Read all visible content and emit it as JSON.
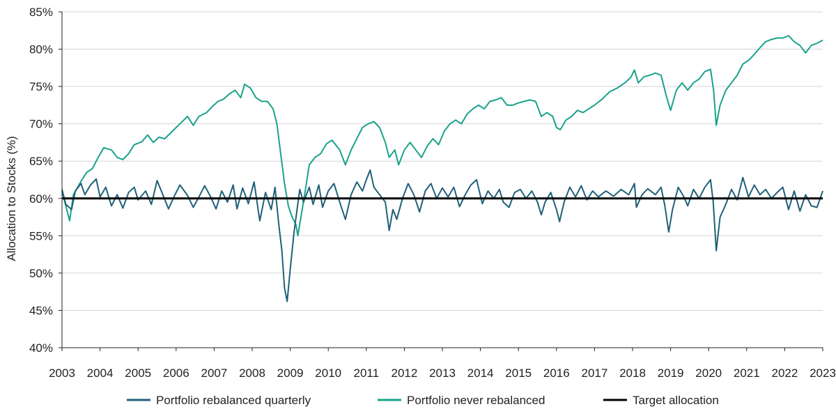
{
  "chart_data": {
    "type": "line",
    "title": "",
    "xlabel": "",
    "ylabel": "Allocation to Stocks (%)",
    "xlim": [
      2003,
      2023
    ],
    "ylim": [
      40,
      85
    ],
    "x_ticks": [
      "2003",
      "2004",
      "2005",
      "2006",
      "2007",
      "2008",
      "2009",
      "2010",
      "2011",
      "2012",
      "2013",
      "2014",
      "2015",
      "2016",
      "2017",
      "2018",
      "2019",
      "2020",
      "2021",
      "2022",
      "2023"
    ],
    "y_ticks": [
      "40%",
      "45%",
      "50%",
      "55%",
      "60%",
      "65%",
      "70%",
      "75%",
      "80%",
      "85%"
    ],
    "grid": "horizontal",
    "legend_position": "bottom",
    "series": [
      {
        "name": "Portfolio rebalanced quarterly",
        "color": "#1f6079",
        "points": [
          [
            2003.0,
            61.2
          ],
          [
            2003.1,
            59.2
          ],
          [
            2003.25,
            58.5
          ],
          [
            2003.35,
            61.0
          ],
          [
            2003.5,
            62.0
          ],
          [
            2003.6,
            60.5
          ],
          [
            2003.75,
            61.8
          ],
          [
            2003.9,
            62.6
          ],
          [
            2004.0,
            60.2
          ],
          [
            2004.15,
            61.5
          ],
          [
            2004.3,
            59.0
          ],
          [
            2004.45,
            60.5
          ],
          [
            2004.6,
            58.7
          ],
          [
            2004.75,
            60.8
          ],
          [
            2004.9,
            61.5
          ],
          [
            2005.0,
            59.8
          ],
          [
            2005.2,
            61.0
          ],
          [
            2005.35,
            59.2
          ],
          [
            2005.5,
            62.4
          ],
          [
            2005.65,
            60.5
          ],
          [
            2005.8,
            58.6
          ],
          [
            2005.95,
            60.3
          ],
          [
            2006.1,
            61.8
          ],
          [
            2006.3,
            60.4
          ],
          [
            2006.45,
            58.8
          ],
          [
            2006.6,
            60.2
          ],
          [
            2006.75,
            61.7
          ],
          [
            2006.9,
            60.3
          ],
          [
            2007.05,
            58.6
          ],
          [
            2007.2,
            61.0
          ],
          [
            2007.35,
            59.5
          ],
          [
            2007.5,
            61.8
          ],
          [
            2007.6,
            58.6
          ],
          [
            2007.75,
            61.4
          ],
          [
            2007.9,
            59.3
          ],
          [
            2008.05,
            62.2
          ],
          [
            2008.2,
            57.0
          ],
          [
            2008.35,
            60.8
          ],
          [
            2008.5,
            58.5
          ],
          [
            2008.6,
            61.5
          ],
          [
            2008.7,
            56.5
          ],
          [
            2008.78,
            53.0
          ],
          [
            2008.85,
            48.0
          ],
          [
            2008.92,
            46.2
          ],
          [
            2009.0,
            50.5
          ],
          [
            2009.1,
            55.5
          ],
          [
            2009.18,
            58.5
          ],
          [
            2009.25,
            61.2
          ],
          [
            2009.35,
            59.5
          ],
          [
            2009.5,
            61.5
          ],
          [
            2009.6,
            59.2
          ],
          [
            2009.75,
            61.8
          ],
          [
            2009.85,
            58.8
          ],
          [
            2010.0,
            61.0
          ],
          [
            2010.15,
            62.0
          ],
          [
            2010.3,
            59.5
          ],
          [
            2010.45,
            57.2
          ],
          [
            2010.6,
            60.5
          ],
          [
            2010.75,
            62.2
          ],
          [
            2010.9,
            61.0
          ],
          [
            2011.0,
            62.5
          ],
          [
            2011.1,
            63.8
          ],
          [
            2011.2,
            61.5
          ],
          [
            2011.35,
            60.5
          ],
          [
            2011.5,
            59.5
          ],
          [
            2011.6,
            55.7
          ],
          [
            2011.7,
            58.5
          ],
          [
            2011.8,
            57.2
          ],
          [
            2011.95,
            60.0
          ],
          [
            2012.1,
            62.0
          ],
          [
            2012.25,
            60.5
          ],
          [
            2012.4,
            58.2
          ],
          [
            2012.55,
            61.0
          ],
          [
            2012.7,
            62.0
          ],
          [
            2012.85,
            60.0
          ],
          [
            2013.0,
            61.4
          ],
          [
            2013.15,
            60.2
          ],
          [
            2013.3,
            61.5
          ],
          [
            2013.45,
            58.9
          ],
          [
            2013.6,
            60.5
          ],
          [
            2013.75,
            61.8
          ],
          [
            2013.9,
            62.5
          ],
          [
            2014.05,
            59.3
          ],
          [
            2014.2,
            61.0
          ],
          [
            2014.35,
            60.0
          ],
          [
            2014.5,
            61.2
          ],
          [
            2014.6,
            59.5
          ],
          [
            2014.75,
            58.8
          ],
          [
            2014.9,
            60.8
          ],
          [
            2015.05,
            61.2
          ],
          [
            2015.2,
            60.0
          ],
          [
            2015.35,
            61.0
          ],
          [
            2015.5,
            59.5
          ],
          [
            2015.6,
            57.8
          ],
          [
            2015.7,
            59.5
          ],
          [
            2015.85,
            60.8
          ],
          [
            2016.0,
            58.5
          ],
          [
            2016.08,
            56.9
          ],
          [
            2016.2,
            59.5
          ],
          [
            2016.35,
            61.5
          ],
          [
            2016.5,
            60.2
          ],
          [
            2016.65,
            61.7
          ],
          [
            2016.8,
            59.8
          ],
          [
            2016.95,
            61.0
          ],
          [
            2017.1,
            60.2
          ],
          [
            2017.3,
            61.0
          ],
          [
            2017.5,
            60.3
          ],
          [
            2017.7,
            61.2
          ],
          [
            2017.9,
            60.5
          ],
          [
            2018.05,
            62.0
          ],
          [
            2018.1,
            58.8
          ],
          [
            2018.25,
            60.5
          ],
          [
            2018.4,
            61.3
          ],
          [
            2018.6,
            60.5
          ],
          [
            2018.75,
            61.5
          ],
          [
            2018.85,
            59.0
          ],
          [
            2018.95,
            55.5
          ],
          [
            2019.05,
            58.5
          ],
          [
            2019.2,
            61.5
          ],
          [
            2019.35,
            60.2
          ],
          [
            2019.45,
            59.0
          ],
          [
            2019.6,
            61.2
          ],
          [
            2019.75,
            60.0
          ],
          [
            2019.9,
            61.5
          ],
          [
            2020.05,
            62.5
          ],
          [
            2020.12,
            59.5
          ],
          [
            2020.2,
            53.0
          ],
          [
            2020.3,
            57.5
          ],
          [
            2020.45,
            59.2
          ],
          [
            2020.6,
            61.2
          ],
          [
            2020.75,
            59.8
          ],
          [
            2020.9,
            62.8
          ],
          [
            2021.05,
            60.2
          ],
          [
            2021.2,
            61.8
          ],
          [
            2021.35,
            60.5
          ],
          [
            2021.5,
            61.2
          ],
          [
            2021.65,
            60.0
          ],
          [
            2021.8,
            60.8
          ],
          [
            2021.95,
            61.5
          ],
          [
            2022.1,
            58.5
          ],
          [
            2022.25,
            61.0
          ],
          [
            2022.4,
            58.3
          ],
          [
            2022.55,
            60.5
          ],
          [
            2022.7,
            59.0
          ],
          [
            2022.85,
            58.8
          ],
          [
            2023.0,
            61.0
          ]
        ]
      },
      {
        "name": "Portfolio never rebalanced",
        "color": "#1aa18b",
        "points": [
          [
            2003.0,
            61.0
          ],
          [
            2003.1,
            59.0
          ],
          [
            2003.2,
            57.0
          ],
          [
            2003.3,
            60.5
          ],
          [
            2003.5,
            62.3
          ],
          [
            2003.65,
            63.5
          ],
          [
            2003.8,
            64.0
          ],
          [
            2003.95,
            65.5
          ],
          [
            2004.1,
            66.8
          ],
          [
            2004.3,
            66.5
          ],
          [
            2004.45,
            65.5
          ],
          [
            2004.6,
            65.2
          ],
          [
            2004.75,
            66.0
          ],
          [
            2004.9,
            67.2
          ],
          [
            2005.1,
            67.6
          ],
          [
            2005.25,
            68.5
          ],
          [
            2005.4,
            67.5
          ],
          [
            2005.55,
            68.2
          ],
          [
            2005.7,
            68.0
          ],
          [
            2005.9,
            69.0
          ],
          [
            2006.1,
            70.0
          ],
          [
            2006.3,
            71.0
          ],
          [
            2006.45,
            69.8
          ],
          [
            2006.6,
            71.0
          ],
          [
            2006.8,
            71.5
          ],
          [
            2006.95,
            72.3
          ],
          [
            2007.1,
            73.0
          ],
          [
            2007.25,
            73.3
          ],
          [
            2007.4,
            74.0
          ],
          [
            2007.55,
            74.5
          ],
          [
            2007.7,
            73.5
          ],
          [
            2007.8,
            75.3
          ],
          [
            2007.95,
            74.8
          ],
          [
            2008.1,
            73.5
          ],
          [
            2008.25,
            73.0
          ],
          [
            2008.4,
            73.0
          ],
          [
            2008.55,
            72.0
          ],
          [
            2008.65,
            70.0
          ],
          [
            2008.75,
            66.0
          ],
          [
            2008.85,
            62.0
          ],
          [
            2008.95,
            59.0
          ],
          [
            2009.05,
            57.5
          ],
          [
            2009.15,
            56.5
          ],
          [
            2009.2,
            55.0
          ],
          [
            2009.28,
            57.5
          ],
          [
            2009.38,
            60.5
          ],
          [
            2009.5,
            64.5
          ],
          [
            2009.65,
            65.5
          ],
          [
            2009.8,
            66.0
          ],
          [
            2009.95,
            67.3
          ],
          [
            2010.1,
            67.8
          ],
          [
            2010.3,
            66.5
          ],
          [
            2010.45,
            64.5
          ],
          [
            2010.6,
            66.5
          ],
          [
            2010.75,
            68.0
          ],
          [
            2010.9,
            69.5
          ],
          [
            2011.05,
            70.0
          ],
          [
            2011.2,
            70.3
          ],
          [
            2011.35,
            69.5
          ],
          [
            2011.5,
            67.5
          ],
          [
            2011.6,
            65.5
          ],
          [
            2011.75,
            66.5
          ],
          [
            2011.85,
            64.5
          ],
          [
            2012.0,
            66.5
          ],
          [
            2012.15,
            67.5
          ],
          [
            2012.3,
            66.5
          ],
          [
            2012.45,
            65.5
          ],
          [
            2012.6,
            67.0
          ],
          [
            2012.75,
            68.0
          ],
          [
            2012.9,
            67.2
          ],
          [
            2013.05,
            69.0
          ],
          [
            2013.2,
            70.0
          ],
          [
            2013.35,
            70.5
          ],
          [
            2013.5,
            70.0
          ],
          [
            2013.65,
            71.3
          ],
          [
            2013.8,
            72.0
          ],
          [
            2013.95,
            72.5
          ],
          [
            2014.1,
            72.0
          ],
          [
            2014.25,
            73.0
          ],
          [
            2014.4,
            73.2
          ],
          [
            2014.55,
            73.5
          ],
          [
            2014.7,
            72.5
          ],
          [
            2014.85,
            72.5
          ],
          [
            2015.0,
            72.8
          ],
          [
            2015.15,
            73.0
          ],
          [
            2015.3,
            73.2
          ],
          [
            2015.45,
            73.0
          ],
          [
            2015.6,
            71.0
          ],
          [
            2015.75,
            71.5
          ],
          [
            2015.9,
            71.0
          ],
          [
            2016.0,
            69.5
          ],
          [
            2016.1,
            69.2
          ],
          [
            2016.25,
            70.5
          ],
          [
            2016.4,
            71.0
          ],
          [
            2016.55,
            71.8
          ],
          [
            2016.7,
            71.5
          ],
          [
            2016.85,
            72.0
          ],
          [
            2017.0,
            72.5
          ],
          [
            2017.2,
            73.3
          ],
          [
            2017.4,
            74.3
          ],
          [
            2017.6,
            74.8
          ],
          [
            2017.8,
            75.5
          ],
          [
            2017.95,
            76.2
          ],
          [
            2018.05,
            77.2
          ],
          [
            2018.15,
            75.5
          ],
          [
            2018.3,
            76.3
          ],
          [
            2018.45,
            76.5
          ],
          [
            2018.6,
            76.8
          ],
          [
            2018.75,
            76.5
          ],
          [
            2018.9,
            73.5
          ],
          [
            2019.0,
            71.8
          ],
          [
            2019.15,
            74.5
          ],
          [
            2019.3,
            75.5
          ],
          [
            2019.45,
            74.5
          ],
          [
            2019.6,
            75.5
          ],
          [
            2019.75,
            76.0
          ],
          [
            2019.9,
            77.0
          ],
          [
            2020.05,
            77.3
          ],
          [
            2020.13,
            74.5
          ],
          [
            2020.2,
            69.8
          ],
          [
            2020.3,
            72.5
          ],
          [
            2020.45,
            74.5
          ],
          [
            2020.6,
            75.5
          ],
          [
            2020.75,
            76.5
          ],
          [
            2020.9,
            78.0
          ],
          [
            2021.05,
            78.5
          ],
          [
            2021.2,
            79.3
          ],
          [
            2021.35,
            80.2
          ],
          [
            2021.5,
            81.0
          ],
          [
            2021.65,
            81.3
          ],
          [
            2021.8,
            81.5
          ],
          [
            2021.95,
            81.5
          ],
          [
            2022.1,
            81.8
          ],
          [
            2022.25,
            81.0
          ],
          [
            2022.4,
            80.5
          ],
          [
            2022.55,
            79.5
          ],
          [
            2022.7,
            80.5
          ],
          [
            2022.85,
            80.8
          ],
          [
            2023.0,
            81.2
          ]
        ]
      },
      {
        "name": "Target allocation",
        "color": "#000000",
        "points": [
          [
            2003.0,
            60.0
          ],
          [
            2023.0,
            60.0
          ]
        ]
      }
    ]
  }
}
